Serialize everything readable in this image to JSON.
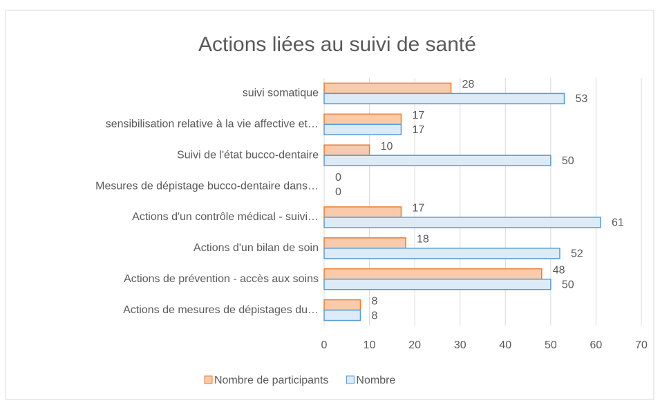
{
  "chart_data": {
    "type": "barh",
    "title": "Actions liées au suivi de santé",
    "categories": [
      "suivi somatique",
      "sensibilisation relative à la vie affective et…",
      "Suivi de l'état bucco-dentaire",
      "Mesures de dépistage bucco-dentaire dans…",
      "Actions d'un contrôle médical - suivi…",
      "Actions d'un bilan de soin",
      "Actions de prévention - accès aux soins",
      "Actions de mesures de dépistages du…"
    ],
    "series": [
      {
        "name": "Nombre de participants",
        "color": "#f8cbad",
        "edge": "#ed7d31",
        "values": [
          28,
          17,
          10,
          0,
          17,
          18,
          48,
          8
        ]
      },
      {
        "name": "Nombre",
        "color": "#ddebf7",
        "edge": "#5b9bd5",
        "values": [
          53,
          17,
          50,
          0,
          61,
          52,
          50,
          8
        ]
      }
    ],
    "xlim": [
      0,
      70
    ],
    "xticks": [
      0,
      10,
      20,
      30,
      40,
      50,
      60,
      70
    ],
    "grid": true,
    "legend": "bottom"
  }
}
